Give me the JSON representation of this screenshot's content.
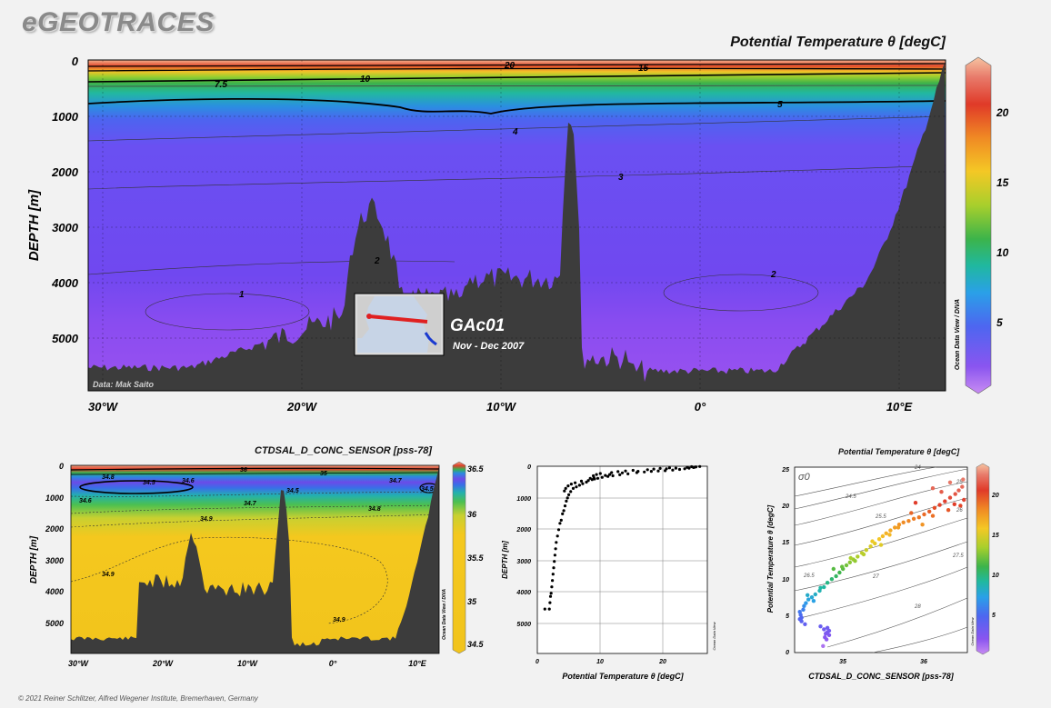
{
  "brand": "eGEOTRACES",
  "footer": "© 2021 Reiner Schlitzer, Alfred Wegener Institute, Bremerhaven, Germany",
  "odv_credit": "Ocean Data View / DIVA",
  "odv_credit_short": "Ocean Data View",
  "colors": {
    "background": "#f2f2f2",
    "seafloor": "#3c3c3c",
    "deep_water": "#6f48f0"
  },
  "chart_data": [
    {
      "type": "heatmap",
      "title": "Potential Temperature θ [degC]",
      "ylabel": "DEPTH [m]",
      "xlabel": "",
      "x_ticks": [
        "30°W",
        "20°W",
        "10°W",
        "0°",
        "10°E"
      ],
      "x_tick_values": [
        -30,
        -20,
        -10,
        0,
        10
      ],
      "y_ticks": [
        0,
        1000,
        2000,
        3000,
        4000,
        5000
      ],
      "ylim": [
        0,
        5900
      ],
      "xlim": [
        -30.7,
        12.1
      ],
      "colorbar_ticks": [
        5,
        10,
        15,
        20
      ],
      "colorbar_range": [
        0,
        23.5
      ],
      "contour_labels": [
        "20",
        "15",
        "10",
        "7.5",
        "5",
        "4",
        "3",
        "2",
        "1",
        "2"
      ],
      "annotation": "Data: Mak Saito",
      "inset": {
        "label": "GAc01",
        "dates": "Nov - Dec 2007"
      }
    },
    {
      "type": "heatmap",
      "title": "CTDSAL_D_CONC_SENSOR [pss-78]",
      "ylabel": "DEPTH [m]",
      "xlabel": "",
      "x_ticks": [
        "30°W",
        "20°W",
        "10°W",
        "0°",
        "10°E"
      ],
      "x_tick_values": [
        -30,
        -20,
        -10,
        0,
        10
      ],
      "y_ticks": [
        0,
        1000,
        2000,
        3000,
        4000,
        5000
      ],
      "ylim": [
        0,
        5900
      ],
      "colorbar_ticks": [
        34.5,
        35,
        35.5,
        36,
        36.5
      ],
      "contour_labels": [
        "36",
        "35",
        "34.8",
        "34.5",
        "34.6",
        "34.5",
        "34.7",
        "34.5",
        "34.6",
        "34.7",
        "34.8",
        "34.9",
        "34.9",
        "34.9"
      ]
    },
    {
      "type": "scatter",
      "xlabel": "Potential Temperature θ [degC]",
      "ylabel": "DEPTH [m]",
      "x_ticks": [
        0,
        10,
        20
      ],
      "y_ticks": [
        0,
        1000,
        2000,
        3000,
        4000,
        5000
      ],
      "xlim": [
        0,
        27
      ],
      "ylim": [
        0,
        5900
      ],
      "points": [
        [
          25.8,
          10
        ],
        [
          25.2,
          20
        ],
        [
          24.8,
          40
        ],
        [
          24.1,
          60
        ],
        [
          23.4,
          80
        ],
        [
          22.6,
          100
        ],
        [
          21.5,
          120
        ],
        [
          20.3,
          140
        ],
        [
          19.2,
          150
        ],
        [
          18.1,
          160
        ],
        [
          17.0,
          180
        ],
        [
          15.8,
          200
        ],
        [
          14.4,
          240
        ],
        [
          13.1,
          270
        ],
        [
          12.0,
          300
        ],
        [
          11.2,
          320
        ],
        [
          10.3,
          350
        ],
        [
          9.6,
          380
        ],
        [
          9.1,
          400
        ],
        [
          8.7,
          420
        ],
        [
          8.1,
          450
        ],
        [
          7.8,
          500
        ],
        [
          7.2,
          550
        ],
        [
          6.7,
          600
        ],
        [
          6.2,
          650
        ],
        [
          5.7,
          700
        ],
        [
          5.3,
          800
        ],
        [
          5.0,
          900
        ],
        [
          4.8,
          1000
        ],
        [
          4.6,
          1100
        ],
        [
          4.4,
          1250
        ],
        [
          4.2,
          1400
        ],
        [
          4.0,
          1500
        ],
        [
          3.8,
          1700
        ],
        [
          3.6,
          1800
        ],
        [
          3.4,
          2000
        ],
        [
          3.2,
          2200
        ],
        [
          3.0,
          2400
        ],
        [
          2.9,
          2600
        ],
        [
          2.8,
          2800
        ],
        [
          2.7,
          3000
        ],
        [
          2.6,
          3200
        ],
        [
          2.5,
          3400
        ],
        [
          2.4,
          3600
        ],
        [
          2.3,
          3800
        ],
        [
          2.2,
          4000
        ],
        [
          2.1,
          4100
        ],
        [
          2.0,
          4300
        ],
        [
          1.9,
          4500
        ],
        [
          1.2,
          4500
        ],
        [
          22.0,
          60
        ],
        [
          20.5,
          80
        ],
        [
          23.8,
          35
        ],
        [
          16.0,
          160
        ],
        [
          13.5,
          210
        ],
        [
          11.5,
          260
        ],
        [
          10.8,
          290
        ],
        [
          9.0,
          360
        ],
        [
          8.4,
          380
        ],
        [
          7.0,
          470
        ],
        [
          6.0,
          520
        ],
        [
          5.4,
          560
        ],
        [
          4.9,
          620
        ],
        [
          4.5,
          700
        ],
        [
          4.3,
          780
        ],
        [
          24.5,
          15
        ],
        [
          25.0,
          30
        ],
        [
          21.0,
          50
        ],
        [
          19.5,
          70
        ],
        [
          18.5,
          90
        ],
        [
          17.5,
          110
        ],
        [
          15.2,
          130
        ],
        [
          14.0,
          150
        ],
        [
          12.8,
          170
        ],
        [
          11.8,
          200
        ],
        [
          10.0,
          230
        ],
        [
          9.4,
          260
        ],
        [
          8.9,
          300
        ]
      ]
    },
    {
      "type": "scatter",
      "title": "Potential Temperature θ [degC]",
      "xlabel": "CTDSAL_D_CONC_SENSOR [pss-78]",
      "ylabel": "Potential Temperature θ [degC]",
      "x_ticks": [
        35,
        36
      ],
      "y_ticks": [
        0,
        5,
        10,
        15,
        20,
        25
      ],
      "xlim": [
        34.5,
        36.5
      ],
      "ylim": [
        0,
        25.5
      ],
      "colorbar_ticks": [
        5,
        10,
        15,
        20
      ],
      "isopycnal_labels": [
        "σ0",
        "24",
        "24.5",
        "25",
        "25.5",
        "26",
        "26.5",
        "27",
        "27.5",
        "28"
      ],
      "points": [
        [
          34.56,
          4.6
        ],
        [
          34.57,
          5.2
        ],
        [
          34.58,
          4.8
        ],
        [
          34.6,
          5.9
        ],
        [
          34.61,
          6.4
        ],
        [
          34.63,
          6.8
        ],
        [
          34.66,
          7.3
        ],
        [
          34.7,
          7.6
        ],
        [
          34.74,
          8.0
        ],
        [
          34.79,
          8.5
        ],
        [
          34.84,
          9.0
        ],
        [
          34.88,
          9.6
        ],
        [
          34.93,
          10.1
        ],
        [
          34.98,
          10.5
        ],
        [
          35.02,
          11.0
        ],
        [
          35.06,
          11.5
        ],
        [
          35.1,
          12.0
        ],
        [
          35.14,
          12.4
        ],
        [
          35.18,
          12.8
        ],
        [
          35.23,
          13.2
        ],
        [
          35.28,
          13.7
        ],
        [
          35.33,
          14.1
        ],
        [
          35.38,
          14.6
        ],
        [
          35.43,
          15.0
        ],
        [
          35.48,
          15.6
        ],
        [
          35.52,
          16.0
        ],
        [
          35.56,
          16.4
        ],
        [
          35.61,
          16.8
        ],
        [
          35.66,
          17.2
        ],
        [
          35.71,
          17.6
        ],
        [
          35.76,
          17.9
        ],
        [
          35.82,
          18.1
        ],
        [
          35.88,
          18.4
        ],
        [
          35.94,
          18.6
        ],
        [
          36.0,
          19.0
        ],
        [
          36.06,
          19.4
        ],
        [
          36.12,
          19.9
        ],
        [
          36.18,
          20.3
        ],
        [
          36.24,
          20.8
        ],
        [
          36.3,
          21.3
        ],
        [
          36.36,
          21.8
        ],
        [
          36.4,
          22.3
        ],
        [
          36.44,
          22.8
        ],
        [
          36.46,
          21.0
        ],
        [
          36.42,
          20.2
        ],
        [
          36.35,
          20.4
        ],
        [
          36.28,
          19.6
        ],
        [
          36.1,
          18.8
        ],
        [
          35.98,
          17.6
        ],
        [
          35.7,
          17.2
        ],
        [
          35.5,
          14.8
        ],
        [
          35.3,
          13.5
        ],
        [
          35.15,
          13.0
        ],
        [
          34.95,
          11.5
        ],
        [
          34.8,
          8.9
        ],
        [
          34.65,
          7.9
        ],
        [
          34.56,
          5.6
        ],
        [
          34.62,
          3.9
        ],
        [
          34.8,
          3.6
        ],
        [
          34.84,
          3.2
        ],
        [
          34.88,
          2.8
        ],
        [
          34.9,
          2.4
        ],
        [
          34.87,
          1.8
        ],
        [
          34.83,
          0.9
        ],
        [
          34.88,
          3.4
        ],
        [
          34.85,
          2.1
        ],
        [
          34.9,
          3.0
        ],
        [
          34.86,
          2.6
        ],
        [
          36.1,
          22.6
        ],
        [
          36.3,
          23.4
        ],
        [
          35.9,
          20.6
        ],
        [
          35.6,
          16.2
        ],
        [
          35.2,
          12.6
        ],
        [
          34.58,
          4.3
        ],
        [
          36.2,
          22.1
        ],
        [
          36.45,
          23.8
        ],
        [
          35.85,
          19.2
        ],
        [
          35.4,
          15.3
        ],
        [
          35.05,
          11.8
        ],
        [
          34.72,
          7.1
        ]
      ]
    }
  ]
}
